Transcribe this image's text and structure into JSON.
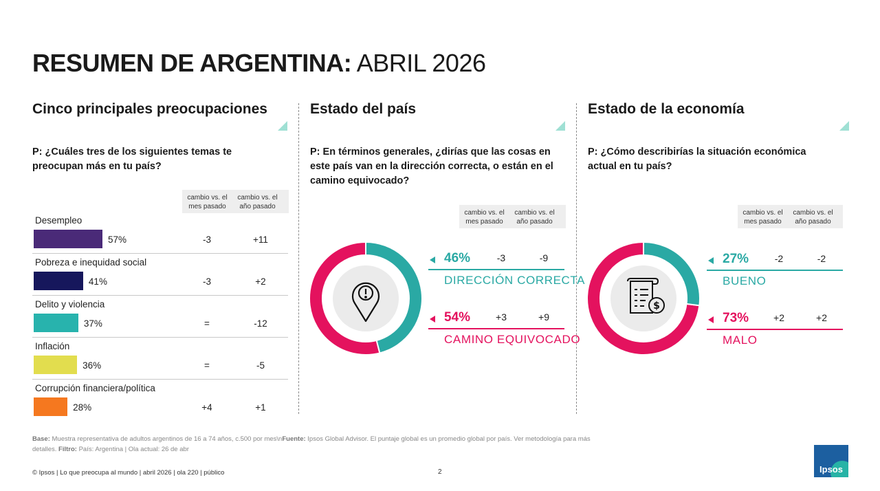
{
  "title": {
    "bold": "RESUMEN DE ARGENTINA:",
    "light": " ABRIL 2026"
  },
  "sections": {
    "concerns": {
      "title": "Cinco principales preocupaciones",
      "question": "P: ¿Cuáles tres de los siguientes temas te preocupan más en tu país?",
      "col_month": "cambio vs. el mes pasado",
      "col_year": "cambio vs. el año pasado"
    },
    "country": {
      "title": "Estado del país",
      "question": "P: En términos generales, ¿dirías que las cosas en este país van en la dirección correcta, o están en el camino equivocado?",
      "col_month": "cambio vs. el mes pasado",
      "col_year": "cambio vs. el año pasado"
    },
    "economy": {
      "title": "Estado de la economía",
      "question": "P: ¿Cómo describirías la situación económica actual en tu país?",
      "col_month": "cambio vs. el mes pasado",
      "col_year": "cambio vs. el año pasado"
    }
  },
  "chart_data": [
    {
      "type": "bar",
      "categories": [
        "Desempleo",
        "Pobreza e inequidad social",
        "Delito y violencia",
        "Inflación",
        "Corrupción financiera/política"
      ],
      "values": [
        57,
        41,
        37,
        36,
        28
      ],
      "labels": [
        "57%",
        "41%",
        "37%",
        "36%",
        "28%"
      ],
      "change_month": [
        "-3",
        "-3",
        "=",
        "=",
        "+4"
      ],
      "change_year": [
        "+11",
        "+2",
        "-12",
        "-5",
        "+1"
      ],
      "colors": [
        "#4a2a78",
        "#16175c",
        "#28b3ad",
        "#e2dd4e",
        "#f5781f"
      ],
      "xlim": [
        0,
        100
      ]
    },
    {
      "type": "pie",
      "categories": [
        "DIRECCIÓN CORRECTA",
        "CAMINO EQUIVOCADO"
      ],
      "values": [
        46,
        54
      ],
      "labels": [
        "46%",
        "54%"
      ],
      "change_month": [
        "-3",
        "+3"
      ],
      "change_year": [
        "-9",
        "+9"
      ],
      "colors": [
        "#2aa9a4",
        "#e4125e"
      ],
      "icon": "location-alert-icon"
    },
    {
      "type": "pie",
      "categories": [
        "BUENO",
        "MALO"
      ],
      "values": [
        27,
        73
      ],
      "labels": [
        "27%",
        "73%"
      ],
      "change_month": [
        "-2",
        "+2"
      ],
      "change_year": [
        "-2",
        "+2"
      ],
      "colors": [
        "#2aa9a4",
        "#e4125e"
      ],
      "icon": "invoice-dollar-icon"
    }
  ],
  "footnote": {
    "base_label": "Base:",
    "base_text": " Muestra representativa de adultos argentinos de 16 a 74 años, c.500 por mes\\n",
    "source_label": "Fuente:",
    "source_text": " Ipsos Global Advisor. El puntaje global es un promedio global por país. Ver metodología para más detalles. ",
    "filter_label": "Filtro:",
    "filter_text": " País: Argentina | Ola actual: 26 de abr"
  },
  "footer": {
    "text": "© Ipsos | Lo que preocupa al mundo | abril 2026 | ola 220 | público",
    "page": "2",
    "logo": "Ipsos"
  }
}
